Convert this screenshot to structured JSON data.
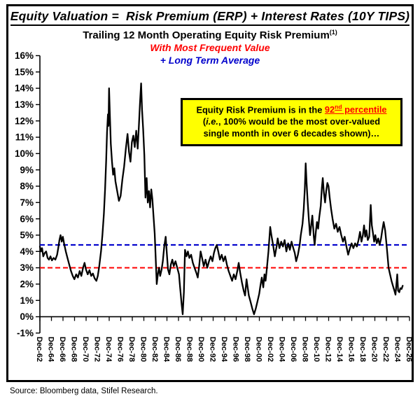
{
  "page": {
    "title": "Equity Valuation =  Risk Premium (ERP) + Interest Rates (10Y TIPS)",
    "source": "Source: Bloomberg data, Stifel Research."
  },
  "chart_header": {
    "subtitle": "Trailing 12 Month Operating Equity Risk Premium",
    "subtitle_sup": "(1)",
    "line_red": "With Most Frequent Value",
    "line_blue": "+ Long Term Average",
    "red_color": "#ff0000",
    "blue_color": "#0000cc"
  },
  "annotation": {
    "line1_prefix": "Equity Risk Premium is in the ",
    "highlight_num": "92",
    "highlight_sup": "nd",
    "highlight_rest": " percentile",
    "line2_open": "(",
    "line2_italic": "i.e.",
    "line2_rest": ", 100% would be the most over-valued",
    "line3": "single month in over 6 decades shown)…",
    "bg_color": "#ffff00",
    "border_color": "#000000",
    "highlight_color": "#ff0000"
  },
  "chart_data": {
    "type": "line",
    "title": "Trailing 12 Month Operating Equity Risk Premium (1)",
    "xlabel": "",
    "ylabel": "",
    "grid": false,
    "ylim": [
      -1,
      16
    ],
    "xlim": [
      1962.92,
      2026.92
    ],
    "y_tick_values": [
      16,
      15,
      14,
      13,
      12,
      11,
      10,
      9,
      8,
      7,
      6,
      5,
      4,
      3,
      2,
      1,
      0,
      -1
    ],
    "y_tick_labels": [
      "16%",
      "15%",
      "14%",
      "13%",
      "12%",
      "11%",
      "10%",
      "9%",
      "8%",
      "7%",
      "6%",
      "5%",
      "4%",
      "3%",
      "2%",
      "1%",
      "0%",
      "-1%"
    ],
    "x_tick_step_years": 2,
    "x_tick_labels": [
      "Dec-62",
      "Dec-64",
      "Dec-66",
      "Dec-68",
      "Dec-70",
      "Dec-72",
      "Dec-74",
      "Dec-76",
      "Dec-78",
      "Dec-80",
      "Dec-82",
      "Dec-84",
      "Dec-86",
      "Dec-88",
      "Dec-90",
      "Dec-92",
      "Dec-94",
      "Dec-96",
      "Dec-98",
      "Dec-00",
      "Dec-02",
      "Dec-04",
      "Dec-06",
      "Dec-08",
      "Dec-10",
      "Dec-12",
      "Dec-14",
      "Dec-16",
      "Dec-18",
      "Dec-20",
      "Dec-22",
      "Dec-24",
      "Dec-26"
    ],
    "reference_lines": [
      {
        "name": "Long Term Average",
        "value": 4.4,
        "color": "#0000cc",
        "style": "dashed"
      },
      {
        "name": "Most Frequent Value",
        "value": 3.0,
        "color": "#ff0000",
        "style": "dashed"
      }
    ],
    "series": [
      {
        "name": "Trailing 12 Month Operating Equity Risk Premium",
        "color": "#000000",
        "points": [
          [
            1962.92,
            4.3
          ],
          [
            1963.1,
            4.0
          ],
          [
            1963.3,
            4.2
          ],
          [
            1963.5,
            3.7
          ],
          [
            1963.75,
            3.9
          ],
          [
            1964.0,
            4.0
          ],
          [
            1964.25,
            3.6
          ],
          [
            1964.5,
            3.5
          ],
          [
            1964.75,
            3.7
          ],
          [
            1965.0,
            3.45
          ],
          [
            1965.3,
            3.6
          ],
          [
            1965.6,
            3.5
          ],
          [
            1965.9,
            3.8
          ],
          [
            1966.1,
            4.2
          ],
          [
            1966.3,
            4.7
          ],
          [
            1966.5,
            5.0
          ],
          [
            1966.7,
            4.6
          ],
          [
            1966.9,
            4.9
          ],
          [
            1967.1,
            4.5
          ],
          [
            1967.4,
            4.0
          ],
          [
            1967.7,
            3.6
          ],
          [
            1968.0,
            3.2
          ],
          [
            1968.3,
            2.8
          ],
          [
            1968.6,
            2.5
          ],
          [
            1968.9,
            2.3
          ],
          [
            1969.2,
            2.6
          ],
          [
            1969.5,
            2.4
          ],
          [
            1969.8,
            2.8
          ],
          [
            1970.1,
            2.5
          ],
          [
            1970.4,
            3.0
          ],
          [
            1970.65,
            3.3
          ],
          [
            1970.9,
            2.9
          ],
          [
            1971.2,
            2.6
          ],
          [
            1971.5,
            2.85
          ],
          [
            1971.8,
            2.5
          ],
          [
            1972.1,
            2.65
          ],
          [
            1972.4,
            2.35
          ],
          [
            1972.7,
            2.2
          ],
          [
            1972.95,
            2.5
          ],
          [
            1973.2,
            3.1
          ],
          [
            1973.5,
            4.0
          ],
          [
            1973.75,
            5.0
          ],
          [
            1974.0,
            6.3
          ],
          [
            1974.2,
            7.8
          ],
          [
            1974.4,
            9.6
          ],
          [
            1974.55,
            11.3
          ],
          [
            1974.7,
            12.4
          ],
          [
            1974.8,
            11.7
          ],
          [
            1974.9,
            14.0
          ],
          [
            1975.05,
            12.2
          ],
          [
            1975.2,
            10.6
          ],
          [
            1975.4,
            9.5
          ],
          [
            1975.6,
            8.7
          ],
          [
            1975.8,
            9.1
          ],
          [
            1976.0,
            8.3
          ],
          [
            1976.3,
            7.7
          ],
          [
            1976.6,
            7.1
          ],
          [
            1976.9,
            7.4
          ],
          [
            1977.2,
            8.4
          ],
          [
            1977.5,
            9.2
          ],
          [
            1977.8,
            10.3
          ],
          [
            1978.1,
            11.2
          ],
          [
            1978.35,
            10.1
          ],
          [
            1978.6,
            9.5
          ],
          [
            1978.85,
            10.7
          ],
          [
            1979.1,
            11.1
          ],
          [
            1979.35,
            10.4
          ],
          [
            1979.6,
            11.4
          ],
          [
            1979.85,
            10.3
          ],
          [
            1980.05,
            11.6
          ],
          [
            1980.25,
            13.1
          ],
          [
            1980.45,
            14.3
          ],
          [
            1980.6,
            12.7
          ],
          [
            1980.8,
            11.5
          ],
          [
            1981.0,
            9.9
          ],
          [
            1981.2,
            7.3
          ],
          [
            1981.4,
            8.5
          ],
          [
            1981.6,
            7.0
          ],
          [
            1981.8,
            7.7
          ],
          [
            1982.0,
            6.7
          ],
          [
            1982.2,
            7.8
          ],
          [
            1982.4,
            7.2
          ],
          [
            1982.6,
            6.1
          ],
          [
            1982.8,
            5.1
          ],
          [
            1983.0,
            3.3
          ],
          [
            1983.15,
            2.0
          ],
          [
            1983.35,
            2.6
          ],
          [
            1983.55,
            3.0
          ],
          [
            1983.75,
            2.5
          ],
          [
            1984.0,
            2.9
          ],
          [
            1984.2,
            3.4
          ],
          [
            1984.45,
            4.3
          ],
          [
            1984.7,
            4.9
          ],
          [
            1984.9,
            3.9
          ],
          [
            1985.1,
            2.9
          ],
          [
            1985.35,
            2.6
          ],
          [
            1985.6,
            3.2
          ],
          [
            1985.85,
            3.5
          ],
          [
            1986.1,
            3.1
          ],
          [
            1986.4,
            3.4
          ],
          [
            1986.7,
            3.0
          ],
          [
            1987.0,
            2.6
          ],
          [
            1987.2,
            1.8
          ],
          [
            1987.45,
            0.8
          ],
          [
            1987.65,
            0.15
          ],
          [
            1987.85,
            1.5
          ],
          [
            1988.05,
            4.1
          ],
          [
            1988.3,
            3.7
          ],
          [
            1988.55,
            4.0
          ],
          [
            1988.8,
            3.6
          ],
          [
            1989.1,
            3.8
          ],
          [
            1989.4,
            3.3
          ],
          [
            1989.7,
            3.0
          ],
          [
            1990.0,
            2.7
          ],
          [
            1990.25,
            2.4
          ],
          [
            1990.5,
            3.1
          ],
          [
            1990.75,
            4.0
          ],
          [
            1991.0,
            3.6
          ],
          [
            1991.3,
            3.1
          ],
          [
            1991.6,
            3.5
          ],
          [
            1991.9,
            3.0
          ],
          [
            1992.2,
            3.4
          ],
          [
            1992.5,
            3.7
          ],
          [
            1992.8,
            3.4
          ],
          [
            1993.05,
            3.9
          ],
          [
            1993.3,
            4.2
          ],
          [
            1993.55,
            4.4
          ],
          [
            1993.8,
            4.0
          ],
          [
            1994.1,
            3.5
          ],
          [
            1994.4,
            3.8
          ],
          [
            1994.7,
            3.4
          ],
          [
            1995.0,
            3.7
          ],
          [
            1995.3,
            3.2
          ],
          [
            1995.6,
            2.8
          ],
          [
            1995.9,
            2.5
          ],
          [
            1996.2,
            2.2
          ],
          [
            1996.5,
            2.6
          ],
          [
            1996.8,
            2.3
          ],
          [
            1997.1,
            2.8
          ],
          [
            1997.35,
            3.3
          ],
          [
            1997.6,
            2.7
          ],
          [
            1997.9,
            2.1
          ],
          [
            1998.2,
            1.6
          ],
          [
            1998.45,
            1.3
          ],
          [
            1998.7,
            2.3
          ],
          [
            1998.9,
            1.8
          ],
          [
            1999.1,
            1.3
          ],
          [
            1999.4,
            0.9
          ],
          [
            1999.7,
            0.5
          ],
          [
            2000.0,
            0.15
          ],
          [
            2000.3,
            0.5
          ],
          [
            2000.6,
            0.95
          ],
          [
            2000.9,
            1.4
          ],
          [
            2001.1,
            1.9
          ],
          [
            2001.35,
            2.4
          ],
          [
            2001.6,
            1.8
          ],
          [
            2001.8,
            2.6
          ],
          [
            2002.0,
            2.2
          ],
          [
            2002.2,
            2.9
          ],
          [
            2002.5,
            4.0
          ],
          [
            2002.8,
            5.5
          ],
          [
            2003.0,
            5.0
          ],
          [
            2003.3,
            4.4
          ],
          [
            2003.6,
            3.7
          ],
          [
            2003.9,
            4.3
          ],
          [
            2004.1,
            4.8
          ],
          [
            2004.4,
            4.2
          ],
          [
            2004.7,
            4.6
          ],
          [
            2005.0,
            4.3
          ],
          [
            2005.3,
            4.7
          ],
          [
            2005.6,
            4.0
          ],
          [
            2005.9,
            4.5
          ],
          [
            2006.2,
            4.1
          ],
          [
            2006.5,
            4.6
          ],
          [
            2006.8,
            4.2
          ],
          [
            2007.05,
            3.9
          ],
          [
            2007.3,
            3.4
          ],
          [
            2007.6,
            3.8
          ],
          [
            2007.9,
            4.4
          ],
          [
            2008.1,
            5.0
          ],
          [
            2008.4,
            5.7
          ],
          [
            2008.6,
            6.6
          ],
          [
            2008.8,
            7.9
          ],
          [
            2008.95,
            9.4
          ],
          [
            2009.1,
            8.2
          ],
          [
            2009.3,
            7.0
          ],
          [
            2009.5,
            5.9
          ],
          [
            2009.7,
            5.0
          ],
          [
            2009.9,
            5.6
          ],
          [
            2010.1,
            6.2
          ],
          [
            2010.35,
            4.9
          ],
          [
            2010.5,
            4.4
          ],
          [
            2010.7,
            5.2
          ],
          [
            2010.9,
            5.8
          ],
          [
            2011.1,
            5.4
          ],
          [
            2011.3,
            6.1
          ],
          [
            2011.55,
            6.8
          ],
          [
            2011.75,
            7.9
          ],
          [
            2011.9,
            8.5
          ],
          [
            2012.1,
            7.6
          ],
          [
            2012.3,
            7.0
          ],
          [
            2012.5,
            7.7
          ],
          [
            2012.7,
            8.2
          ],
          [
            2012.9,
            8.0
          ],
          [
            2013.1,
            7.3
          ],
          [
            2013.35,
            6.6
          ],
          [
            2013.6,
            6.0
          ],
          [
            2013.9,
            5.4
          ],
          [
            2014.2,
            5.7
          ],
          [
            2014.5,
            5.2
          ],
          [
            2014.8,
            5.5
          ],
          [
            2015.1,
            5.0
          ],
          [
            2015.4,
            4.6
          ],
          [
            2015.7,
            4.9
          ],
          [
            2016.0,
            4.3
          ],
          [
            2016.3,
            3.8
          ],
          [
            2016.6,
            4.2
          ],
          [
            2016.9,
            4.5
          ],
          [
            2017.2,
            4.2
          ],
          [
            2017.5,
            4.5
          ],
          [
            2017.8,
            4.3
          ],
          [
            2018.1,
            4.7
          ],
          [
            2018.35,
            5.2
          ],
          [
            2018.6,
            4.6
          ],
          [
            2018.85,
            5.0
          ],
          [
            2019.05,
            5.6
          ],
          [
            2019.25,
            4.9
          ],
          [
            2019.45,
            5.3
          ],
          [
            2019.7,
            4.7
          ],
          [
            2019.95,
            4.9
          ],
          [
            2020.2,
            6.85
          ],
          [
            2020.4,
            5.6
          ],
          [
            2020.6,
            5.1
          ],
          [
            2020.8,
            4.6
          ],
          [
            2021.0,
            5.0
          ],
          [
            2021.25,
            4.5
          ],
          [
            2021.5,
            4.8
          ],
          [
            2021.75,
            4.4
          ],
          [
            2022.0,
            4.8
          ],
          [
            2022.2,
            5.3
          ],
          [
            2022.45,
            5.8
          ],
          [
            2022.7,
            5.3
          ],
          [
            2022.9,
            4.6
          ],
          [
            2023.1,
            3.8
          ],
          [
            2023.3,
            3.0
          ],
          [
            2023.55,
            2.6
          ],
          [
            2023.8,
            2.2
          ],
          [
            2024.05,
            1.9
          ],
          [
            2024.3,
            1.6
          ],
          [
            2024.5,
            1.35
          ],
          [
            2024.65,
            2.0
          ],
          [
            2024.8,
            2.6
          ],
          [
            2024.95,
            1.6
          ],
          [
            2025.15,
            1.5
          ],
          [
            2025.35,
            1.75
          ],
          [
            2025.55,
            1.7
          ],
          [
            2025.75,
            1.9
          ]
        ]
      }
    ]
  }
}
